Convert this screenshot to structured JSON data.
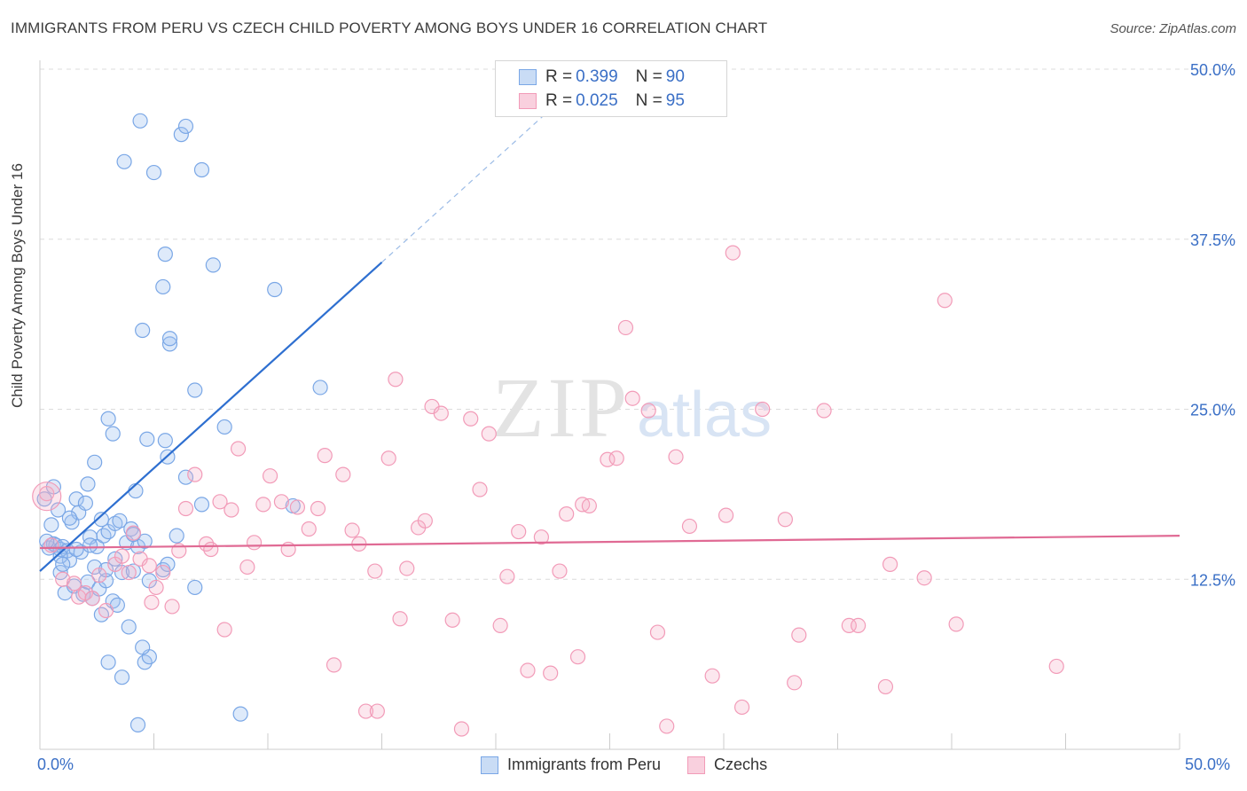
{
  "title": "IMMIGRANTS FROM PERU VS CZECH CHILD POVERTY AMONG BOYS UNDER 16 CORRELATION CHART",
  "source": "Source: ZipAtlas.com",
  "watermark": {
    "zip": "ZIP",
    "atlas": "atlas"
  },
  "legend": {
    "rows": [
      {
        "r_label": "R = ",
        "r_value": "0.399",
        "n_label": "N = ",
        "n_value": "90"
      },
      {
        "r_label": "R = ",
        "r_value": "0.025",
        "n_label": "N = ",
        "n_value": "95"
      }
    ]
  },
  "chart_data": {
    "type": "scatter",
    "xlabel": "",
    "ylabel": "Child Poverty Among Boys Under 16",
    "xlim": [
      0,
      50
    ],
    "ylim": [
      0,
      50
    ],
    "x_tick_labels": {
      "left": "0.0%",
      "right": "50.0%"
    },
    "y_ticks": [
      12.5,
      25.0,
      37.5,
      50.0
    ],
    "y_tick_labels": [
      "12.5%",
      "25.0%",
      "37.5%",
      "50.0%"
    ],
    "series": [
      {
        "name": "Immigrants from Peru",
        "color": "#7aa7e6",
        "line_color": "#2e6fd0",
        "trend": {
          "x0": 0,
          "y0": 13.1,
          "x1": 15,
          "y1": 35.8,
          "dash_to_x": 22.5,
          "dash_to_y": 47.2
        },
        "points": [
          [
            0.4,
            14.8
          ],
          [
            0.6,
            15.1
          ],
          [
            0.7,
            15.0
          ],
          [
            0.9,
            14.7
          ],
          [
            1.0,
            14.9
          ],
          [
            1.2,
            14.6
          ],
          [
            0.5,
            16.5
          ],
          [
            0.8,
            17.6
          ],
          [
            1.4,
            16.7
          ],
          [
            1.6,
            18.4
          ],
          [
            1.7,
            17.4
          ],
          [
            2.0,
            18.1
          ],
          [
            1.3,
            13.9
          ],
          [
            0.9,
            13.0
          ],
          [
            1.8,
            14.5
          ],
          [
            2.2,
            15.6
          ],
          [
            2.5,
            14.9
          ],
          [
            2.8,
            15.7
          ],
          [
            3.0,
            16.0
          ],
          [
            3.3,
            16.6
          ],
          [
            3.5,
            16.8
          ],
          [
            3.8,
            15.2
          ],
          [
            4.0,
            16.2
          ],
          [
            4.3,
            14.9
          ],
          [
            4.6,
            15.3
          ],
          [
            1.1,
            11.5
          ],
          [
            1.5,
            12.0
          ],
          [
            1.9,
            11.4
          ],
          [
            2.1,
            12.3
          ],
          [
            2.3,
            11.1
          ],
          [
            2.6,
            11.8
          ],
          [
            2.9,
            12.4
          ],
          [
            3.2,
            10.9
          ],
          [
            3.4,
            10.6
          ],
          [
            2.7,
            9.9
          ],
          [
            2.4,
            13.4
          ],
          [
            2.9,
            13.2
          ],
          [
            3.6,
            13.0
          ],
          [
            4.1,
            13.1
          ],
          [
            4.8,
            12.4
          ],
          [
            5.4,
            13.2
          ],
          [
            5.6,
            13.6
          ],
          [
            6.0,
            15.7
          ],
          [
            6.8,
            11.9
          ],
          [
            3.0,
            6.4
          ],
          [
            3.6,
            5.3
          ],
          [
            4.6,
            6.4
          ],
          [
            4.8,
            6.8
          ],
          [
            4.5,
            7.5
          ],
          [
            3.9,
            9.0
          ],
          [
            4.3,
            1.8
          ],
          [
            8.8,
            2.6
          ],
          [
            2.4,
            21.1
          ],
          [
            3.0,
            24.3
          ],
          [
            3.2,
            23.2
          ],
          [
            4.2,
            19.0
          ],
          [
            5.6,
            21.5
          ],
          [
            4.7,
            22.8
          ],
          [
            5.5,
            22.7
          ],
          [
            6.4,
            20.0
          ],
          [
            7.1,
            18.0
          ],
          [
            8.1,
            23.7
          ],
          [
            11.1,
            17.9
          ],
          [
            12.3,
            26.6
          ],
          [
            6.8,
            26.4
          ],
          [
            5.7,
            29.8
          ],
          [
            5.7,
            30.2
          ],
          [
            5.4,
            34.0
          ],
          [
            7.6,
            35.6
          ],
          [
            10.3,
            33.8
          ],
          [
            5.5,
            36.4
          ],
          [
            4.5,
            30.8
          ],
          [
            3.7,
            43.2
          ],
          [
            5.0,
            42.4
          ],
          [
            4.4,
            46.2
          ],
          [
            6.2,
            45.2
          ],
          [
            6.4,
            45.8
          ],
          [
            7.1,
            42.6
          ],
          [
            0.2,
            18.4
          ],
          [
            0.6,
            19.3
          ],
          [
            2.1,
            19.5
          ],
          [
            1.3,
            17.0
          ],
          [
            2.7,
            16.9
          ],
          [
            0.9,
            14.2
          ],
          [
            1.6,
            14.7
          ],
          [
            2.2,
            15.0
          ],
          [
            0.3,
            15.3
          ],
          [
            1.0,
            13.6
          ],
          [
            3.3,
            14.0
          ],
          [
            4.1,
            15.8
          ]
        ]
      },
      {
        "name": "Czechs",
        "color": "#f29bb8",
        "line_color": "#e06a94",
        "trend": {
          "x0": 0,
          "y0": 14.8,
          "x1": 50,
          "y1": 15.7
        },
        "points": [
          [
            0.3,
            18.8
          ],
          [
            0.5,
            15.0
          ],
          [
            1.0,
            12.5
          ],
          [
            1.5,
            12.2
          ],
          [
            1.7,
            11.2
          ],
          [
            2.0,
            11.5
          ],
          [
            2.3,
            11.1
          ],
          [
            2.6,
            12.8
          ],
          [
            2.9,
            10.2
          ],
          [
            3.3,
            13.6
          ],
          [
            3.6,
            14.2
          ],
          [
            3.9,
            13.0
          ],
          [
            4.1,
            15.9
          ],
          [
            4.4,
            14.0
          ],
          [
            4.8,
            13.5
          ],
          [
            4.9,
            10.8
          ],
          [
            5.1,
            11.9
          ],
          [
            5.4,
            13.0
          ],
          [
            5.8,
            10.5
          ],
          [
            6.1,
            14.6
          ],
          [
            6.4,
            17.7
          ],
          [
            6.8,
            20.2
          ],
          [
            7.3,
            15.1
          ],
          [
            7.5,
            14.7
          ],
          [
            7.9,
            18.2
          ],
          [
            8.1,
            8.8
          ],
          [
            8.4,
            17.6
          ],
          [
            8.7,
            22.1
          ],
          [
            9.1,
            13.4
          ],
          [
            9.4,
            15.2
          ],
          [
            9.8,
            18.0
          ],
          [
            10.1,
            20.1
          ],
          [
            10.6,
            18.2
          ],
          [
            10.9,
            14.7
          ],
          [
            11.3,
            17.8
          ],
          [
            11.8,
            16.2
          ],
          [
            12.2,
            17.7
          ],
          [
            12.5,
            21.6
          ],
          [
            12.9,
            6.2
          ],
          [
            13.3,
            20.2
          ],
          [
            13.7,
            16.1
          ],
          [
            14.0,
            15.1
          ],
          [
            14.3,
            2.8
          ],
          [
            14.7,
            13.1
          ],
          [
            14.8,
            2.8
          ],
          [
            15.3,
            21.4
          ],
          [
            15.6,
            27.2
          ],
          [
            15.8,
            9.6
          ],
          [
            16.1,
            13.3
          ],
          [
            16.6,
            16.3
          ],
          [
            16.9,
            16.8
          ],
          [
            17.2,
            25.2
          ],
          [
            17.6,
            24.7
          ],
          [
            18.1,
            9.5
          ],
          [
            18.5,
            1.5
          ],
          [
            18.9,
            24.3
          ],
          [
            19.3,
            19.1
          ],
          [
            19.7,
            23.2
          ],
          [
            20.2,
            9.1
          ],
          [
            20.5,
            12.7
          ],
          [
            21.0,
            16.0
          ],
          [
            21.4,
            5.8
          ],
          [
            22.0,
            15.6
          ],
          [
            22.4,
            5.6
          ],
          [
            22.8,
            13.1
          ],
          [
            23.1,
            17.3
          ],
          [
            23.6,
            6.8
          ],
          [
            23.8,
            18.0
          ],
          [
            24.1,
            17.9
          ],
          [
            24.9,
            21.3
          ],
          [
            25.3,
            21.4
          ],
          [
            25.7,
            31.0
          ],
          [
            26.0,
            25.8
          ],
          [
            26.7,
            24.9
          ],
          [
            27.1,
            8.6
          ],
          [
            27.5,
            1.7
          ],
          [
            27.9,
            21.5
          ],
          [
            28.5,
            16.4
          ],
          [
            29.5,
            5.4
          ],
          [
            30.1,
            17.2
          ],
          [
            30.4,
            36.5
          ],
          [
            30.8,
            3.1
          ],
          [
            31.7,
            25.0
          ],
          [
            32.7,
            16.9
          ],
          [
            33.1,
            4.9
          ],
          [
            33.3,
            8.4
          ],
          [
            34.4,
            24.9
          ],
          [
            35.5,
            9.1
          ],
          [
            35.9,
            9.1
          ],
          [
            37.1,
            4.6
          ],
          [
            37.3,
            13.6
          ],
          [
            38.8,
            12.6
          ],
          [
            39.7,
            33.0
          ],
          [
            40.2,
            9.2
          ],
          [
            44.6,
            6.1
          ]
        ]
      }
    ]
  }
}
